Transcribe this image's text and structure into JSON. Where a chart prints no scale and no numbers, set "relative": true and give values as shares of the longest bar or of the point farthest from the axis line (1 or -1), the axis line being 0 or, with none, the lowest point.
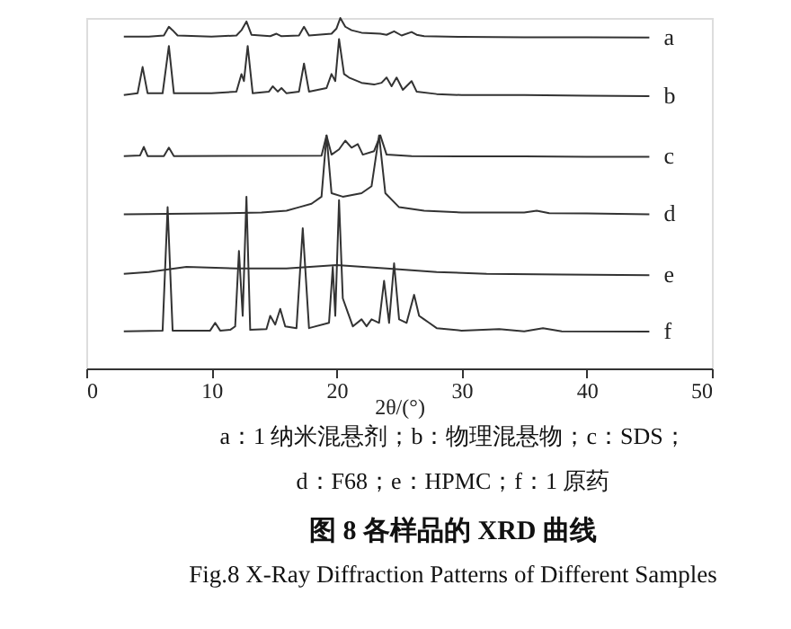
{
  "chart_data": {
    "type": "line",
    "relative": true,
    "title": "图 8   各样品的 XRD 曲线",
    "subtitle": "Fig.8   X-Ray Diffraction Patterns of Different Samples",
    "xlabel": "2θ/(°)",
    "annotations": [
      "a：1 纳米混悬剂；b：物理混悬物；c：SDS；",
      "d：F68；e：HPMC；f：1 原药"
    ],
    "xlim": [
      0,
      50
    ],
    "xticks": [
      0,
      10,
      20,
      30,
      40,
      50
    ],
    "grid": false,
    "legend": false,
    "series": [
      {
        "name": "a",
        "color": "#333333",
        "x": [
          3,
          5,
          6.2,
          6.6,
          6.9,
          7.3,
          10,
          12,
          12.4,
          12.8,
          13.2,
          14.7,
          15.2,
          15.6,
          17,
          17.4,
          17.8,
          19.6,
          20.0,
          20.3,
          20.7,
          21.2,
          22,
          23.5,
          24,
          24.6,
          25.2,
          26,
          26.4,
          27,
          30,
          35,
          40,
          45
        ],
        "values": [
          0.947,
          0.947,
          0.95,
          0.975,
          0.965,
          0.95,
          0.947,
          0.95,
          0.965,
          0.99,
          0.952,
          0.948,
          0.955,
          0.948,
          0.95,
          0.975,
          0.95,
          0.955,
          0.97,
          1.0,
          0.975,
          0.965,
          0.958,
          0.955,
          0.952,
          0.962,
          0.95,
          0.96,
          0.952,
          0.948,
          0.946,
          0.945,
          0.945,
          0.944
        ]
      },
      {
        "name": "b",
        "color": "#333333",
        "x": [
          3,
          4.1,
          4.5,
          4.9,
          6.1,
          6.6,
          7.0,
          10,
          12,
          12.4,
          12.6,
          12.9,
          13.3,
          14.6,
          14.9,
          15.3,
          15.6,
          16,
          17,
          17.4,
          17.8,
          19.2,
          19.6,
          19.9,
          20.2,
          20.6,
          21,
          22,
          23,
          23.6,
          24,
          24.4,
          24.8,
          25.3,
          26,
          26.4,
          28,
          30,
          35,
          40,
          45
        ],
        "values": [
          0.78,
          0.785,
          0.86,
          0.785,
          0.785,
          0.92,
          0.785,
          0.785,
          0.79,
          0.84,
          0.82,
          0.92,
          0.785,
          0.79,
          0.805,
          0.79,
          0.8,
          0.785,
          0.79,
          0.87,
          0.79,
          0.8,
          0.84,
          0.82,
          0.94,
          0.84,
          0.83,
          0.815,
          0.81,
          0.815,
          0.83,
          0.805,
          0.83,
          0.795,
          0.82,
          0.79,
          0.783,
          0.78,
          0.78,
          0.778,
          0.777
        ]
      },
      {
        "name": "c",
        "color": "#333333",
        "x": [
          3,
          4.3,
          4.6,
          4.9,
          6.2,
          6.6,
          7,
          18.8,
          19.2,
          19.6,
          20.2,
          20.7,
          21.2,
          21.7,
          22.1,
          23,
          23.5,
          24,
          26,
          30,
          35,
          40,
          45
        ],
        "values": [
          0.606,
          0.608,
          0.632,
          0.606,
          0.606,
          0.63,
          0.606,
          0.607,
          0.665,
          0.61,
          0.625,
          0.65,
          0.63,
          0.64,
          0.61,
          0.62,
          0.665,
          0.61,
          0.606,
          0.605,
          0.605,
          0.604,
          0.604
        ]
      },
      {
        "name": "d",
        "color": "#333333",
        "x": [
          3,
          10,
          14,
          16,
          17,
          18,
          18.8,
          19.2,
          19.6,
          20.5,
          22,
          22.8,
          23.4,
          23.9,
          25,
          26,
          27,
          30,
          35,
          36,
          37,
          40,
          45
        ],
        "values": [
          0.44,
          0.442,
          0.445,
          0.45,
          0.46,
          0.47,
          0.49,
          0.665,
          0.5,
          0.49,
          0.5,
          0.52,
          0.665,
          0.5,
          0.46,
          0.455,
          0.45,
          0.445,
          0.445,
          0.45,
          0.443,
          0.442,
          0.44
        ]
      },
      {
        "name": "e",
        "color": "#333333",
        "x": [
          3,
          5,
          8,
          12,
          16,
          20,
          24,
          28,
          32,
          38,
          45
        ],
        "values": [
          0.27,
          0.275,
          0.29,
          0.285,
          0.285,
          0.295,
          0.285,
          0.275,
          0.27,
          0.268,
          0.266
        ]
      },
      {
        "name": "f",
        "color": "#333333",
        "x": [
          3,
          6.1,
          6.5,
          6.9,
          9.9,
          10.3,
          10.7,
          11.5,
          11.9,
          12.2,
          12.5,
          12.8,
          13.1,
          14.4,
          14.7,
          15.1,
          15.5,
          15.9,
          16.8,
          17.3,
          17.8,
          19.4,
          19.7,
          19.9,
          20.2,
          20.5,
          20.9,
          21.3,
          22,
          22.4,
          22.8,
          23.4,
          23.8,
          24.2,
          24.6,
          25,
          25.6,
          26.2,
          26.6,
          27,
          27.4,
          28,
          30,
          33,
          35,
          36.5,
          38,
          45
        ],
        "values": [
          0.106,
          0.108,
          0.46,
          0.108,
          0.108,
          0.13,
          0.108,
          0.11,
          0.12,
          0.335,
          0.15,
          0.49,
          0.11,
          0.112,
          0.15,
          0.125,
          0.17,
          0.12,
          0.115,
          0.4,
          0.115,
          0.13,
          0.29,
          0.15,
          0.48,
          0.2,
          0.16,
          0.12,
          0.14,
          0.12,
          0.14,
          0.13,
          0.25,
          0.13,
          0.3,
          0.14,
          0.13,
          0.21,
          0.15,
          0.14,
          0.13,
          0.115,
          0.108,
          0.112,
          0.106,
          0.115,
          0.106,
          0.105
        ]
      }
    ]
  }
}
